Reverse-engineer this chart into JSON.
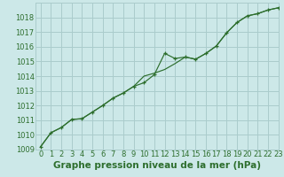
{
  "title": "Graphe pression niveau de la mer (hPa)",
  "bg_color": "#cce8e8",
  "grid_color": "#aacccc",
  "line_color": "#2d6e2d",
  "xlim": [
    -0.5,
    23
  ],
  "ylim": [
    1009,
    1019
  ],
  "xticks": [
    0,
    1,
    2,
    3,
    4,
    5,
    6,
    7,
    8,
    9,
    10,
    11,
    12,
    13,
    14,
    15,
    16,
    17,
    18,
    19,
    20,
    21,
    22,
    23
  ],
  "yticks": [
    1009,
    1010,
    1011,
    1012,
    1013,
    1014,
    1015,
    1016,
    1017,
    1018
  ],
  "line1_x": [
    0,
    1,
    2,
    3,
    4,
    5,
    6,
    7,
    8,
    9,
    10,
    11,
    12,
    13,
    14,
    15,
    16,
    17,
    18,
    19,
    20,
    21,
    22,
    23
  ],
  "line1_y": [
    1009.2,
    1010.15,
    1010.5,
    1011.05,
    1011.1,
    1011.55,
    1012.0,
    1012.5,
    1012.85,
    1013.3,
    1013.55,
    1014.1,
    1015.55,
    1015.2,
    1015.3,
    1015.15,
    1015.55,
    1016.05,
    1016.95,
    1017.65,
    1018.1,
    1018.25,
    1018.5,
    1018.65
  ],
  "line2_x": [
    0,
    1,
    2,
    3,
    4,
    5,
    6,
    7,
    8,
    9,
    10,
    11,
    12,
    13,
    14,
    15,
    16,
    17,
    18,
    19,
    20,
    21,
    22,
    23
  ],
  "line2_y": [
    1009.2,
    1010.15,
    1010.5,
    1011.05,
    1011.1,
    1011.55,
    1012.0,
    1012.5,
    1012.85,
    1013.3,
    1014.0,
    1014.2,
    1014.45,
    1014.85,
    1015.3,
    1015.15,
    1015.55,
    1016.05,
    1016.95,
    1017.65,
    1018.1,
    1018.25,
    1018.5,
    1018.65
  ],
  "title_fontsize": 7.5,
  "tick_fontsize": 6.0
}
